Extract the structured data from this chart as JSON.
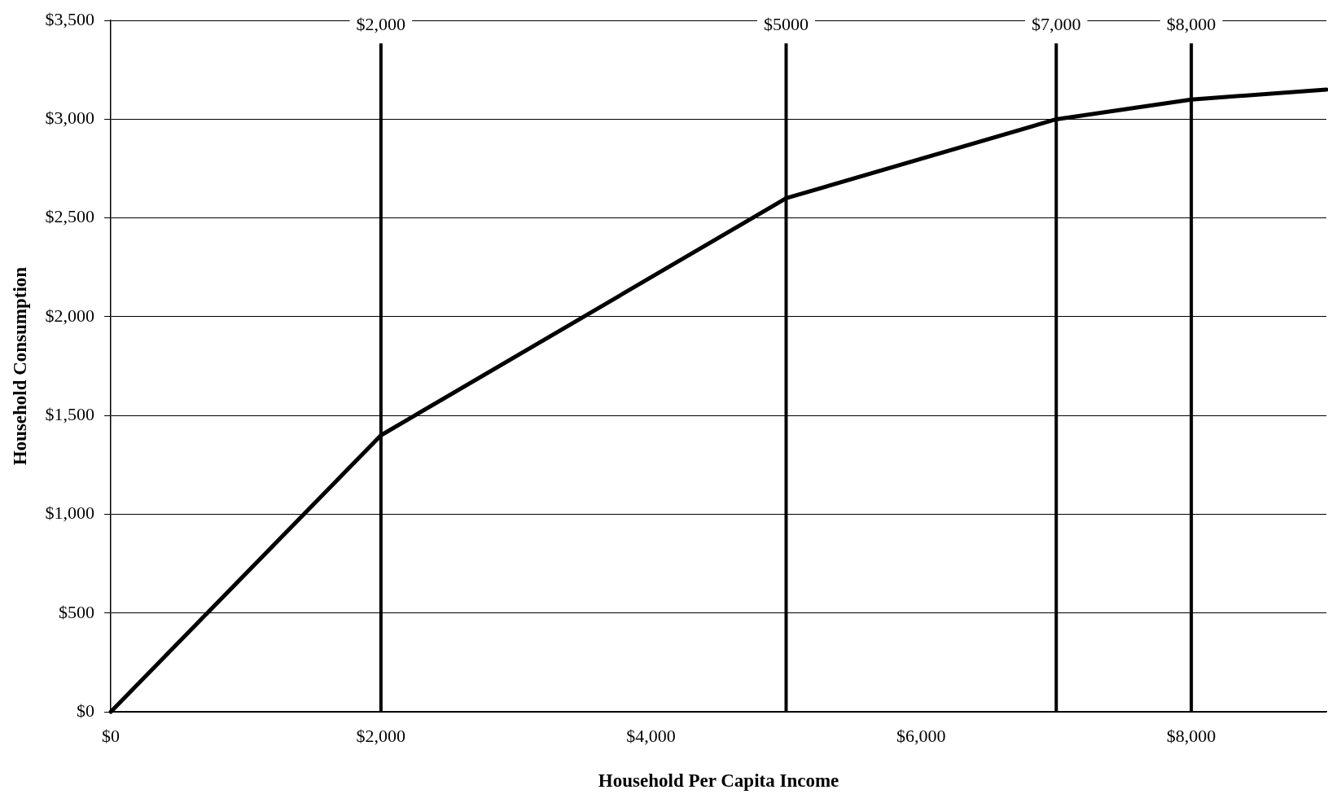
{
  "chart_data": {
    "type": "line",
    "xlabel": "Household Per Capita Income",
    "ylabel": "Household Consumption",
    "x": [
      0,
      2000,
      5000,
      7000,
      8000,
      9000
    ],
    "series": [
      {
        "color": "#000000",
        "values": [
          0,
          1400,
          2600,
          3000,
          3100,
          3150
        ]
      }
    ],
    "xlim": [
      0,
      9000
    ],
    "xticks": [
      {
        "value": 0,
        "label": "$0"
      },
      {
        "value": 2000,
        "label": "$2,000"
      },
      {
        "value": 4000,
        "label": "$4,000"
      },
      {
        "value": 6000,
        "label": "$6,000"
      },
      {
        "value": 8000,
        "label": "$8,000"
      }
    ],
    "ylim": [
      0,
      3500
    ],
    "yticks": [
      {
        "value": 0,
        "label": "$0"
      },
      {
        "value": 500,
        "label": "$500"
      },
      {
        "value": 1000,
        "label": "$1,000"
      },
      {
        "value": 1500,
        "label": "$1,500"
      },
      {
        "value": 2000,
        "label": "$2,000"
      },
      {
        "value": 2500,
        "label": "$2,500"
      },
      {
        "value": 3000,
        "label": "$3,000"
      },
      {
        "value": 3500,
        "label": "$3,500"
      }
    ],
    "ref_lines": [
      {
        "axis": "x",
        "value": 2000,
        "label": "$2,000",
        "color": "#000000"
      },
      {
        "axis": "x",
        "value": 5000,
        "label": "$5000",
        "color": "#000000"
      },
      {
        "axis": "x",
        "value": 7000,
        "label": "$7,000",
        "color": "#000000"
      },
      {
        "axis": "x",
        "value": 8000,
        "label": "$8,000",
        "color": "#000000"
      }
    ],
    "grid": "y",
    "legend": false,
    "marker": "none",
    "line_style": "solid"
  }
}
